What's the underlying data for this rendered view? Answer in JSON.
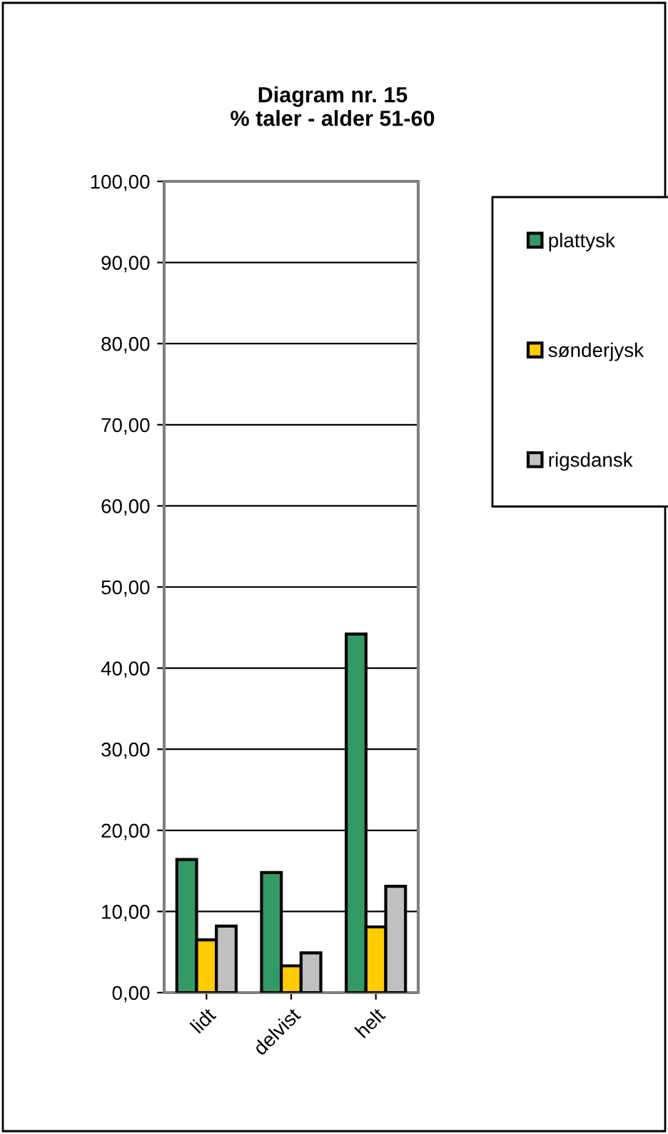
{
  "chart_data": {
    "type": "bar",
    "title": "Diagram nr. 15\n% taler - alder 51-60",
    "categories": [
      "lidt",
      "delvist",
      "helt"
    ],
    "series": [
      {
        "name": "plattysk",
        "color": "#339966",
        "values": [
          16.4,
          14.8,
          44.2
        ]
      },
      {
        "name": "sønderjysk",
        "color": "#ffcc00",
        "values": [
          6.5,
          3.3,
          8.1
        ]
      },
      {
        "name": "rigsdansk",
        "color": "#c0c0c0",
        "values": [
          8.2,
          4.9,
          13.1
        ]
      }
    ],
    "ylim": [
      0,
      100
    ],
    "yticks": [
      {
        "value": 0,
        "label": "0,00"
      },
      {
        "value": 10,
        "label": "10,00"
      },
      {
        "value": 20,
        "label": "20,00"
      },
      {
        "value": 30,
        "label": "30,00"
      },
      {
        "value": 40,
        "label": "40,00"
      },
      {
        "value": 50,
        "label": "50,00"
      },
      {
        "value": 60,
        "label": "60,00"
      },
      {
        "value": 70,
        "label": "70,00"
      },
      {
        "value": 80,
        "label": "80,00"
      },
      {
        "value": 90,
        "label": "90,00"
      },
      {
        "value": 100,
        "label": "100,00"
      }
    ],
    "grid": "y",
    "legend": "right"
  }
}
